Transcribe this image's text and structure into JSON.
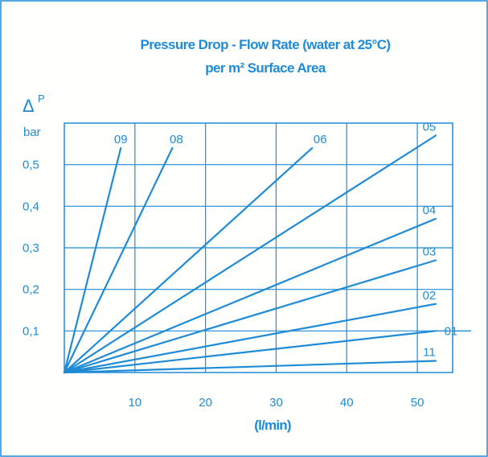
{
  "chart_data": {
    "type": "line",
    "title": "Pressure Drop - Flow Rate (water at 25°C)",
    "subtitle": "per m² Surface Area",
    "ylabel_symbol": "Δ",
    "ylabel_sup": "P",
    "yunit": "bar",
    "xlabel": "(l/min)",
    "xlim": [
      0,
      55
    ],
    "ylim": [
      0,
      0.6
    ],
    "x_ticks": [
      {
        "value": 10,
        "label": "10"
      },
      {
        "value": 20,
        "label": "20"
      },
      {
        "value": 30,
        "label": "30"
      },
      {
        "value": 40,
        "label": "40"
      },
      {
        "value": 50,
        "label": "50"
      }
    ],
    "y_ticks": [
      {
        "value": 0.1,
        "label": "0,1"
      },
      {
        "value": 0.2,
        "label": "0,2"
      },
      {
        "value": 0.3,
        "label": "0,3"
      },
      {
        "value": 0.4,
        "label": "0,4"
      },
      {
        "value": 0.5,
        "label": "0,5"
      }
    ],
    "grid": true,
    "series": [
      {
        "name": "09",
        "x": [
          0,
          8.0
        ],
        "y": [
          0,
          0.54
        ]
      },
      {
        "name": "08",
        "x": [
          0,
          15.3
        ],
        "y": [
          0,
          0.54
        ]
      },
      {
        "name": "06",
        "x": [
          0,
          35.1
        ],
        "y": [
          0,
          0.54
        ]
      },
      {
        "name": "05",
        "x": [
          0,
          52.6
        ],
        "y": [
          0,
          0.57
        ]
      },
      {
        "name": "04",
        "x": [
          0,
          52.6
        ],
        "y": [
          0,
          0.37
        ]
      },
      {
        "name": "03",
        "x": [
          0,
          52.6
        ],
        "y": [
          0,
          0.27
        ]
      },
      {
        "name": "02",
        "x": [
          0,
          52.6
        ],
        "y": [
          0,
          0.165
        ]
      },
      {
        "name": "01",
        "x": [
          0,
          52.6
        ],
        "y": [
          0,
          0.1
        ]
      },
      {
        "name": "11",
        "x": [
          0,
          52.6
        ],
        "y": [
          0,
          0.028
        ]
      }
    ]
  },
  "colors": {
    "ink": "#1f8bd6",
    "frame": "#1f8bd6"
  }
}
